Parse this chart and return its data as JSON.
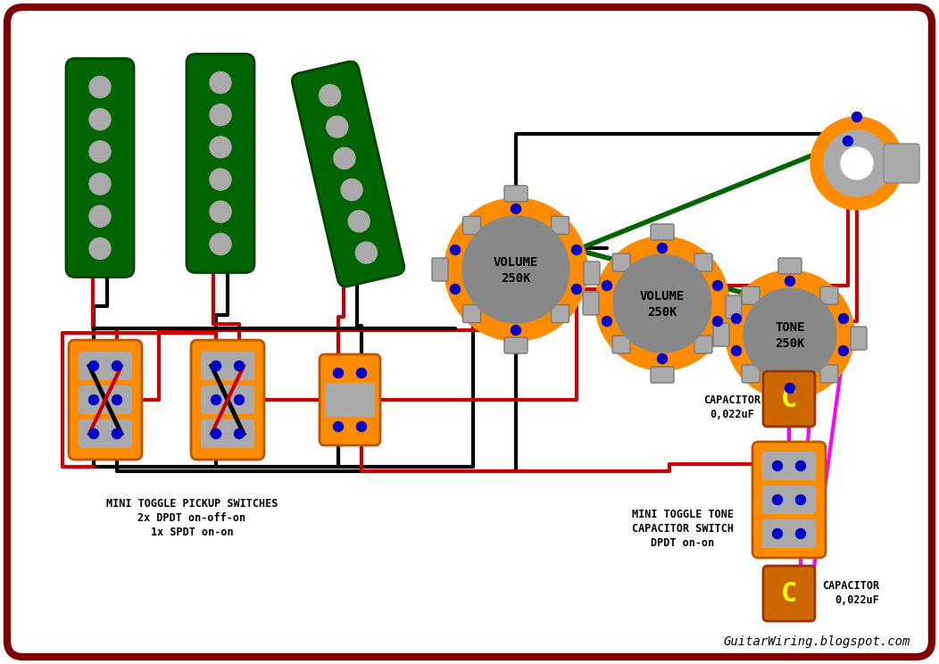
{
  "bg_color": "#ffffff",
  "border_color": "#800000",
  "pickup_color": "#006400",
  "pickup_pole_color": "#aaaaaa",
  "switch_color": "#ff8c00",
  "switch_lug_color": "#aaaaaa",
  "pot_sleeve_color": "#ff8c00",
  "pot_lug_color": "#aaaaaa",
  "pot_body_color": "#888888",
  "cap_color": "#cc6600",
  "cap_letter_color": "#ffff00",
  "node_color": "#0000cc",
  "wire_black": "#000000",
  "wire_red": "#cc0000",
  "wire_green": "#006400",
  "wire_magenta": "#ff00ff",
  "label_switches": [
    "MINI TOGGLE PICKUP SWITCHES",
    "2x DPDT on-off-on",
    "1x SPDT on-on"
  ],
  "label_tone_switch": [
    "MINI TOGGLE TONE",
    "CAPACITOR SWITCH",
    "DPDT on-on"
  ],
  "label_cap1": [
    "CAPACITOR",
    "0,022uF"
  ],
  "label_cap2": [
    "CAPACITOR",
    "0,022uF"
  ],
  "website": "GuitarWiring.blogspot.com",
  "vol1": [
    "VOLUME",
    "250K"
  ],
  "vol2": [
    "VOLUME",
    "250K"
  ],
  "tone_label": [
    "TONE",
    "250K"
  ]
}
